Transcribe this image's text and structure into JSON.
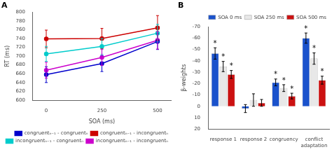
{
  "chart_data": [
    {
      "type": "line",
      "title": "A",
      "xlabel": "SOA (ms)",
      "ylabel": "RT (ms)",
      "x": [
        0,
        250,
        500
      ],
      "xlim": [
        -60,
        560
      ],
      "xticks": [
        0,
        250,
        500
      ],
      "ylim": [
        600,
        800
      ],
      "yticks": [
        600,
        620,
        640,
        660,
        680,
        700,
        720,
        740,
        760,
        780,
        800
      ],
      "grid": false,
      "legend": "lower right",
      "marker": "circle",
      "series": [
        {
          "name": "congruentₙ₋₁ - congruentₙ",
          "color": "#0000cc",
          "values": [
            658,
            683,
            733
          ],
          "yerr": [
            18,
            18,
            18
          ]
        },
        {
          "name": "congruentₙ₋₁ - incongruentₙ",
          "color": "#cc0000",
          "values": [
            739,
            740,
            764
          ],
          "yerr": [
            20,
            23,
            28
          ]
        },
        {
          "name": "incongruentₙ₋₁ - congruentₙ",
          "color": "#00cccc",
          "values": [
            705,
            722,
            752
          ],
          "yerr": [
            17,
            18,
            20
          ]
        },
        {
          "name": "incongruentₙ₋₁ - incongruentₙ",
          "color": "#cc00cc",
          "values": [
            668,
            697,
            736
          ],
          "yerr": [
            18,
            18,
            20
          ]
        }
      ]
    },
    {
      "type": "bar",
      "title": "B",
      "ylabel": "β-weights",
      "categories": [
        "response 1",
        "response 2",
        "congruency",
        "conflict adaptation"
      ],
      "ylim": [
        20,
        -70
      ],
      "yticks": [
        20,
        10,
        0,
        -10,
        -20,
        -30,
        -40,
        -50,
        -60,
        -70
      ],
      "grid": false,
      "legend": "upper right",
      "series": [
        {
          "name": "SOA 0 ms",
          "color": "#1a52cc",
          "values": [
            -46.5,
            2.0,
            -21.0,
            -60.0
          ],
          "yerr": [
            5.0,
            3.5,
            3.0,
            4.5
          ]
        },
        {
          "name": "SOA 250 ms",
          "color": "#e8e8e8",
          "values": [
            -35.0,
            -5.5,
            -16.0,
            -42.0
          ],
          "yerr": [
            4.5,
            5.5,
            3.0,
            5.0
          ]
        },
        {
          "name": "SOA 500 ms",
          "color": "#cc1111",
          "values": [
            -28.0,
            -3.0,
            -9.0,
            -23.0
          ],
          "yerr": [
            3.5,
            3.0,
            2.5,
            3.5
          ]
        }
      ],
      "annotations": [
        {
          "text": "*",
          "category": "response 1",
          "series": "SOA 0 ms"
        },
        {
          "text": "*",
          "category": "response 1",
          "series": "SOA 250 ms"
        },
        {
          "text": "*",
          "category": "response 1",
          "series": "SOA 500 ms"
        },
        {
          "text": "*",
          "category": "congruency",
          "series": "SOA 0 ms"
        },
        {
          "text": "*",
          "category": "congruency",
          "series": "SOA 250 ms"
        },
        {
          "text": "*",
          "category": "congruency",
          "series": "SOA 500 ms"
        },
        {
          "text": "*",
          "category": "conflict adaptation",
          "series": "SOA 0 ms"
        },
        {
          "text": "*",
          "category": "conflict adaptation",
          "series": "SOA 250 ms"
        },
        {
          "text": "*",
          "category": "conflict adaptation",
          "series": "SOA 500 ms"
        }
      ]
    }
  ]
}
